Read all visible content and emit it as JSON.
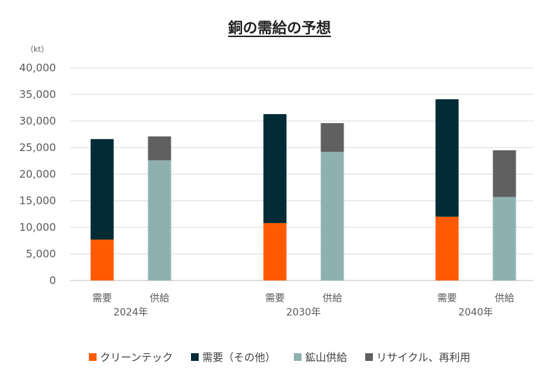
{
  "chart_data": {
    "type": "bar",
    "stacked": true,
    "title": "銅の需給の予想",
    "unit": "（kt）",
    "ylim": [
      0,
      40000
    ],
    "yticks": [
      "0",
      "5,000",
      "10,000",
      "15,000",
      "20,000",
      "25,000",
      "30,000",
      "35,000",
      "40,000"
    ],
    "grid": true,
    "legend_position": "bottom",
    "groups": [
      {
        "label": "2024年",
        "bars": [
          {
            "label": "需要",
            "segments": [
              {
                "series": "クリーンテック",
                "value": 7700
              },
              {
                "series": "需要（その他）",
                "value": 18900
              }
            ]
          },
          {
            "label": "供給",
            "segments": [
              {
                "series": "鉱山供給",
                "value": 22600
              },
              {
                "series": "リサイクル、再利用",
                "value": 4500
              }
            ]
          }
        ]
      },
      {
        "label": "2030年",
        "bars": [
          {
            "label": "需要",
            "segments": [
              {
                "series": "クリーンテック",
                "value": 10800
              },
              {
                "series": "需要（その他）",
                "value": 20500
              }
            ]
          },
          {
            "label": "供給",
            "segments": [
              {
                "series": "鉱山供給",
                "value": 24200
              },
              {
                "series": "リサイクル、再利用",
                "value": 5400
              }
            ]
          }
        ]
      },
      {
        "label": "2040年",
        "bars": [
          {
            "label": "需要",
            "segments": [
              {
                "series": "クリーンテック",
                "value": 12000
              },
              {
                "series": "需要（その他）",
                "value": 22100
              }
            ]
          },
          {
            "label": "供給",
            "segments": [
              {
                "series": "鉱山供給",
                "value": 15700
              },
              {
                "series": "リサイクル、再利用",
                "value": 8800
              }
            ]
          }
        ]
      }
    ],
    "series": [
      {
        "name": "クリーンテック",
        "color": "#ff5a00"
      },
      {
        "name": "需要（その他）",
        "color": "#022b36"
      },
      {
        "name": "鉱山供給",
        "color": "#8fb0b0"
      },
      {
        "name": "リサイクル、再利用",
        "color": "#606060"
      }
    ]
  }
}
